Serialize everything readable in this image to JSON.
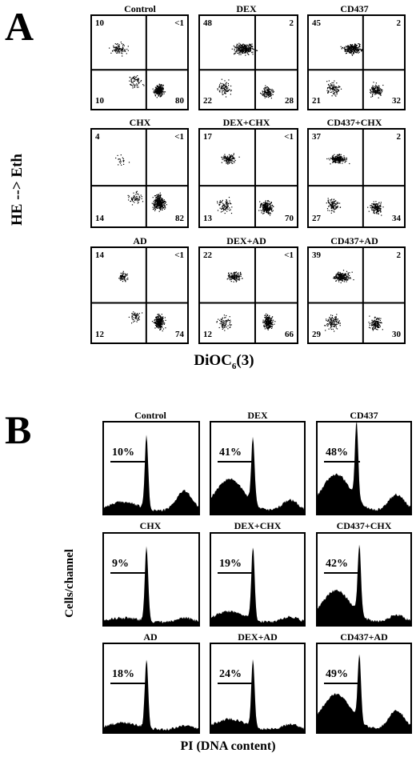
{
  "figure": {
    "panel_a": {
      "letter": "A",
      "y_label": "HE --> Eth",
      "x_label_main": "DiOC",
      "x_label_sub": "6",
      "x_label_suffix": "(3)",
      "plots": [
        {
          "title": "Control",
          "ul": "10",
          "ur": "<1",
          "ll": "10",
          "lr": "80"
        },
        {
          "title": "DEX",
          "ul": "48",
          "ur": "2",
          "ll": "22",
          "lr": "28"
        },
        {
          "title": "CD437",
          "ul": "45",
          "ur": "2",
          "ll": "21",
          "lr": "32"
        },
        {
          "title": "CHX",
          "ul": "4",
          "ur": "<1",
          "ll": "14",
          "lr": "82"
        },
        {
          "title": "DEX+CHX",
          "ul": "17",
          "ur": "<1",
          "ll": "13",
          "lr": "70"
        },
        {
          "title": "CD437+CHX",
          "ul": "37",
          "ur": "2",
          "ll": "27",
          "lr": "34"
        },
        {
          "title": "AD",
          "ul": "14",
          "ur": "<1",
          "ll": "12",
          "lr": "74"
        },
        {
          "title": "DEX+AD",
          "ul": "22",
          "ur": "<1",
          "ll": "12",
          "lr": "66"
        },
        {
          "title": "CD437+AD",
          "ul": "39",
          "ur": "2",
          "ll": "29",
          "lr": "30"
        }
      ]
    },
    "panel_b": {
      "letter": "B",
      "y_label": "Cells/channel",
      "x_label": "PI (DNA content)",
      "plots": [
        {
          "title": "Control",
          "percent": "10%"
        },
        {
          "title": "DEX",
          "percent": "41%"
        },
        {
          "title": "CD437",
          "percent": "48%"
        },
        {
          "title": "CHX",
          "percent": "9%"
        },
        {
          "title": "DEX+CHX",
          "percent": "19%"
        },
        {
          "title": "CD437+CHX",
          "percent": "42%"
        },
        {
          "title": "AD",
          "percent": "18%"
        },
        {
          "title": "DEX+AD",
          "percent": "24%"
        },
        {
          "title": "CD437+AD",
          "percent": "49%"
        }
      ]
    }
  }
}
